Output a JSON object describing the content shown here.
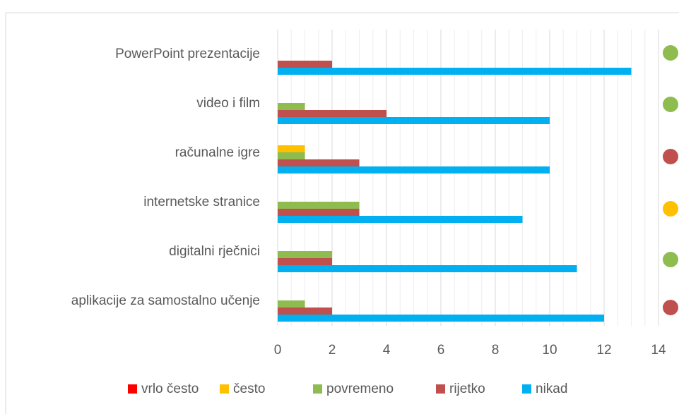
{
  "chart_data": {
    "type": "hbar",
    "categories": [
      "PowerPoint prezentacije",
      "video i film",
      "računalne igre",
      "internetske stranice",
      "digitalni rječnici",
      "aplikacije za samostalno učenje"
    ],
    "series": [
      {
        "name": "vrlo često",
        "color": "#ff0000",
        "values": [
          0,
          0,
          0,
          0,
          0,
          0
        ]
      },
      {
        "name": "često",
        "color": "#ffc000",
        "values": [
          0,
          0,
          1,
          0,
          0,
          0
        ]
      },
      {
        "name": "povremeno",
        "color": "#8fbc4f",
        "values": [
          0,
          1,
          1,
          3,
          2,
          1
        ]
      },
      {
        "name": "rijetko",
        "color": "#c0504d",
        "values": [
          2,
          4,
          3,
          3,
          2,
          2
        ]
      },
      {
        "name": "nikad",
        "color": "#00b0f0",
        "values": [
          13,
          10,
          10,
          9,
          11,
          12
        ]
      }
    ],
    "xlim": [
      0,
      14
    ],
    "xticks": [
      0,
      2,
      4,
      6,
      8,
      10,
      12,
      14
    ],
    "grid": true,
    "minor_grid": true,
    "legend": "bottom"
  }
}
